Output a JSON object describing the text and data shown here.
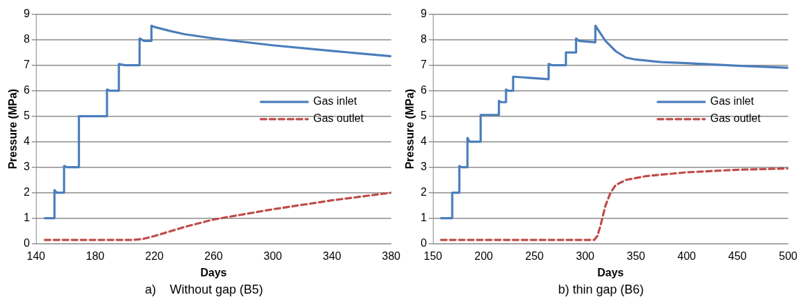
{
  "chart_data": [
    {
      "type": "line",
      "xlabel": "Days",
      "ylabel": "Pressure (MPa)",
      "annotations": [
        "a)    Without gap (B5)"
      ],
      "xlim": [
        140,
        380
      ],
      "xticks": [
        140,
        180,
        220,
        260,
        300,
        340,
        380
      ],
      "ylim": [
        0,
        9
      ],
      "yticks": [
        0,
        1,
        2,
        3,
        4,
        5,
        6,
        7,
        8,
        9
      ],
      "grid": "y",
      "legend": "right",
      "marker": "none",
      "series": [
        {
          "name": "Gas inlet",
          "color": "#4a7ebb",
          "line_style": "solid",
          "x": [
            146,
            152.5,
            152.5,
            154,
            159,
            159,
            161,
            169,
            169,
            188,
            188,
            190,
            196,
            196,
            200,
            210,
            210,
            213,
            218,
            218,
            220,
            230,
            240,
            260,
            300,
            340,
            380
          ],
          "values": [
            1.0,
            1.0,
            2.1,
            2.0,
            2.0,
            3.05,
            3.0,
            3.0,
            5.0,
            5.0,
            6.05,
            6.0,
            6.0,
            7.05,
            7.0,
            7.0,
            8.05,
            7.95,
            7.95,
            8.55,
            8.5,
            8.35,
            8.22,
            8.05,
            7.78,
            7.56,
            7.35
          ]
        },
        {
          "name": "Gas outlet",
          "color": "#be4b48",
          "line_style": "dashed",
          "x": [
            146,
            180,
            205,
            212,
            220,
            240,
            260,
            280,
            300,
            340,
            380
          ],
          "values": [
            0.15,
            0.15,
            0.15,
            0.18,
            0.3,
            0.65,
            0.95,
            1.15,
            1.35,
            1.7,
            2.0
          ]
        }
      ]
    },
    {
      "type": "line",
      "xlabel": "Days",
      "ylabel": "Pressure (MPa)",
      "annotations": [
        "b) thin gap (B6)"
      ],
      "xlim": [
        150,
        500
      ],
      "xticks": [
        150,
        200,
        250,
        300,
        350,
        400,
        450,
        500
      ],
      "ylim": [
        0,
        9
      ],
      "yticks": [
        0,
        1,
        2,
        3,
        4,
        5,
        6,
        7,
        8,
        9
      ],
      "grid": "y",
      "legend": "right",
      "marker": "none",
      "series": [
        {
          "name": "Gas inlet",
          "color": "#4a7ebb",
          "line_style": "solid",
          "x": [
            158,
            169,
            169,
            176,
            176,
            178,
            184,
            184,
            186,
            197,
            197,
            215,
            215,
            217,
            222,
            222,
            224,
            229,
            229,
            264,
            264,
            267,
            281,
            281,
            291,
            291,
            294,
            310,
            310,
            315,
            320,
            330,
            340,
            350,
            375,
            400,
            450,
            500
          ],
          "values": [
            1.0,
            1.0,
            2.0,
            2.0,
            3.05,
            3.0,
            3.0,
            4.15,
            4.0,
            4.0,
            5.05,
            5.05,
            5.6,
            5.55,
            5.55,
            6.05,
            6.0,
            6.0,
            6.55,
            6.45,
            7.05,
            7.0,
            7.0,
            7.5,
            7.5,
            8.05,
            7.95,
            7.9,
            8.55,
            8.25,
            7.95,
            7.55,
            7.3,
            7.22,
            7.12,
            7.08,
            6.98,
            6.9
          ]
        },
        {
          "name": "Gas outlet",
          "color": "#be4b48",
          "line_style": "dashed",
          "x": [
            158,
            250,
            309,
            312,
            315,
            320,
            325,
            330,
            340,
            360,
            400,
            450,
            500
          ],
          "values": [
            0.15,
            0.15,
            0.15,
            0.3,
            0.7,
            1.5,
            2.0,
            2.3,
            2.5,
            2.65,
            2.8,
            2.9,
            2.95
          ]
        }
      ]
    }
  ]
}
